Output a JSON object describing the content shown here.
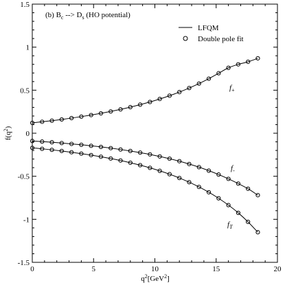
{
  "chart_data": {
    "type": "line",
    "title": {
      "main": "(b) B",
      "sub1": "c",
      "arrow": " --> D",
      "sub2": "s",
      "rest": " (HO potential)"
    },
    "xlabel": {
      "main": "q",
      "sup": "2",
      "rest": "[GeV",
      "sup2": "2",
      "end": "]"
    },
    "ylabel": {
      "main": "f(q",
      "sup": "2",
      "end": ")"
    },
    "xlim": [
      0,
      20
    ],
    "ylim": [
      -1.5,
      1.5
    ],
    "xticks": [
      0,
      5,
      10,
      15,
      20
    ],
    "xtick_labels": [
      "0",
      "5",
      "10",
      "15",
      "20"
    ],
    "yticks": [
      -1.5,
      -1,
      -0.5,
      0,
      0.5,
      1,
      1.5
    ],
    "ytick_labels": [
      "-1.5",
      "-1",
      "-0.5",
      "0",
      "0.5",
      "1",
      "1.5"
    ],
    "legend": [
      {
        "label": "LFQM",
        "style": "line"
      },
      {
        "label": "Double pole fit",
        "style": "circle"
      }
    ],
    "legend_position": "top-right",
    "series": [
      {
        "label_main": "f",
        "label_sub": "+",
        "f0": 0.12,
        "fmax": 0.87,
        "x": [
          0,
          0.8,
          1.6,
          2.4,
          3.2,
          4.0,
          4.8,
          5.6,
          6.4,
          7.2,
          8.0,
          8.8,
          9.6,
          10.4,
          11.2,
          12.0,
          12.8,
          13.6,
          14.4,
          15.2,
          16.0,
          16.8,
          17.6,
          18.4
        ],
        "y": [
          0.12,
          0.133,
          0.146,
          0.16,
          0.176,
          0.193,
          0.211,
          0.231,
          0.253,
          0.277,
          0.303,
          0.332,
          0.363,
          0.398,
          0.436,
          0.478,
          0.525,
          0.577,
          0.634,
          0.697,
          0.76,
          0.8,
          0.83,
          0.87
        ]
      },
      {
        "label_main": "f",
        "label_sub": "-",
        "f0": -0.09,
        "fmax": -0.72,
        "x": [
          0,
          0.8,
          1.6,
          2.4,
          3.2,
          4.0,
          4.8,
          5.6,
          6.4,
          7.2,
          8.0,
          8.8,
          9.6,
          10.4,
          11.2,
          12.0,
          12.8,
          13.6,
          14.4,
          15.2,
          16.0,
          16.8,
          17.6,
          18.4
        ],
        "y": [
          -0.09,
          -0.097,
          -0.105,
          -0.114,
          -0.124,
          -0.134,
          -0.146,
          -0.159,
          -0.173,
          -0.189,
          -0.206,
          -0.225,
          -0.246,
          -0.27,
          -0.296,
          -0.325,
          -0.358,
          -0.394,
          -0.435,
          -0.48,
          -0.53,
          -0.585,
          -0.645,
          -0.72
        ]
      },
      {
        "label_main": "f",
        "label_sub": "T",
        "f0": -0.17,
        "fmax": -1.15,
        "x": [
          0,
          0.8,
          1.6,
          2.4,
          3.2,
          4.0,
          4.8,
          5.6,
          6.4,
          7.2,
          8.0,
          8.8,
          9.6,
          10.4,
          11.2,
          12.0,
          12.8,
          13.6,
          14.4,
          15.2,
          16.0,
          16.8,
          17.6,
          18.4
        ],
        "y": [
          -0.17,
          -0.181,
          -0.193,
          -0.206,
          -0.221,
          -0.237,
          -0.254,
          -0.273,
          -0.294,
          -0.317,
          -0.343,
          -0.371,
          -0.402,
          -0.437,
          -0.476,
          -0.52,
          -0.569,
          -0.624,
          -0.686,
          -0.756,
          -0.835,
          -0.925,
          -1.03,
          -1.15
        ]
      }
    ],
    "grid": false
  }
}
